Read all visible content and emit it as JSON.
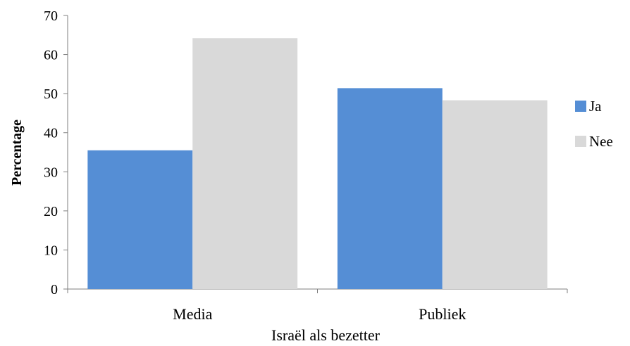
{
  "chart_data": {
    "type": "bar",
    "categories": [
      "Media",
      "Publiek"
    ],
    "series": [
      {
        "name": "Ja",
        "values": [
          35.5,
          51.4
        ],
        "color": "#558ED5"
      },
      {
        "name": "Nee",
        "values": [
          64.2,
          48.3
        ],
        "color": "#D9D9D9"
      }
    ],
    "xlabel": "Israël als bezetter",
    "ylabel": "Percentage",
    "ylim": [
      0,
      70
    ],
    "yticks": [
      "0",
      "10",
      "20",
      "30",
      "40",
      "50",
      "60",
      "70"
    ],
    "grid": false,
    "legend_position": "right"
  }
}
